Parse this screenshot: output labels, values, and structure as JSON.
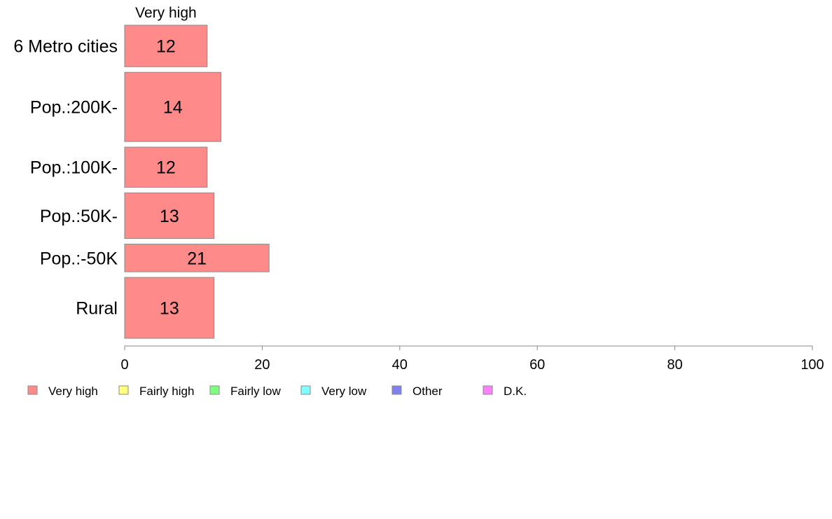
{
  "chart_data": {
    "type": "bar",
    "orientation": "horizontal",
    "stacked": true,
    "column_header": "Very high",
    "categories": [
      "6 Metro cities",
      "Pop.:200K-",
      "Pop.:100K-",
      "Pop.:50K-",
      "Pop.:-50K",
      "Rural"
    ],
    "series": [
      {
        "name": "Very high",
        "color": "#ff8a8a",
        "values": [
          12,
          14,
          12,
          13,
          21,
          13
        ]
      }
    ],
    "data_labels": [
      "12",
      "14",
      "12",
      "13",
      "21",
      "13"
    ],
    "bar_weights": [
      0.6,
      1.0,
      0.58,
      0.66,
      0.4,
      0.88
    ],
    "xlim": [
      0,
      100
    ],
    "x_ticks": [
      0,
      20,
      40,
      60,
      80,
      100
    ],
    "x_tick_labels": [
      "0",
      "20",
      "40",
      "60",
      "80",
      "100"
    ],
    "xlabel": "",
    "ylabel": "",
    "grid": false,
    "legend_position": "bottom",
    "legend": [
      {
        "label": "Very high",
        "color": "#ff8a8a"
      },
      {
        "label": "Fairly high",
        "color": "#ffff80"
      },
      {
        "label": "Fairly low",
        "color": "#80ff80"
      },
      {
        "label": "Very low",
        "color": "#80ffff"
      },
      {
        "label": "Other",
        "color": "#8080f0"
      },
      {
        "label": "D.K.",
        "color": "#ff80ff"
      }
    ]
  }
}
